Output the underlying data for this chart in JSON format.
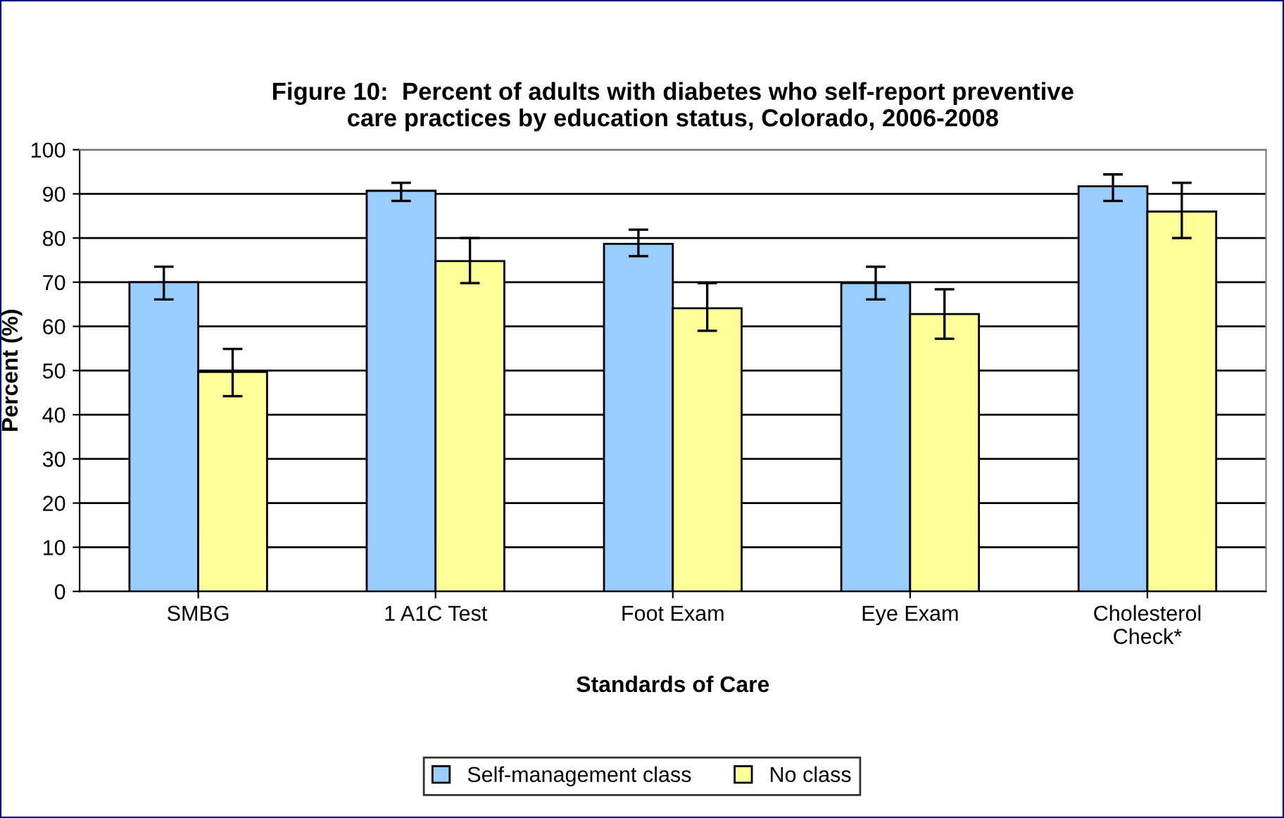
{
  "chart_data": {
    "type": "bar",
    "title": "Figure 10:  Percent of adults with diabetes who self-report preventive\ncare practices by education status, Colorado, 2006-2008",
    "xlabel": "Standards of Care",
    "ylabel": "Percent (%)",
    "categories": [
      "SMBG",
      "1 A1C Test",
      "Foot Exam",
      "Eye Exam",
      "Cholesterol\nCheck*"
    ],
    "series": [
      {
        "name": "Self-management class",
        "color": "#99ccff",
        "values": [
          70,
          90.7,
          78.7,
          69.8,
          91.7
        ],
        "errors": [
          [
            66.1,
            73.5
          ],
          [
            88.4,
            92.5
          ],
          [
            75.9,
            81.9
          ],
          [
            66.1,
            73.5
          ],
          [
            88.4,
            94.4
          ]
        ]
      },
      {
        "name": "No class",
        "color": "#ffff99",
        "values": [
          49.7,
          74.8,
          64.1,
          62.8,
          86
        ],
        "errors": [
          [
            44.2,
            54.9
          ],
          [
            69.8,
            80
          ],
          [
            59,
            69.8
          ],
          [
            57.2,
            68.4
          ],
          [
            80,
            92.5
          ]
        ]
      }
    ],
    "ylim": [
      0,
      100
    ],
    "yticks": [
      0,
      10,
      20,
      30,
      40,
      50,
      60,
      70,
      80,
      90,
      100
    ],
    "grid": "y",
    "legend": "bottom"
  }
}
